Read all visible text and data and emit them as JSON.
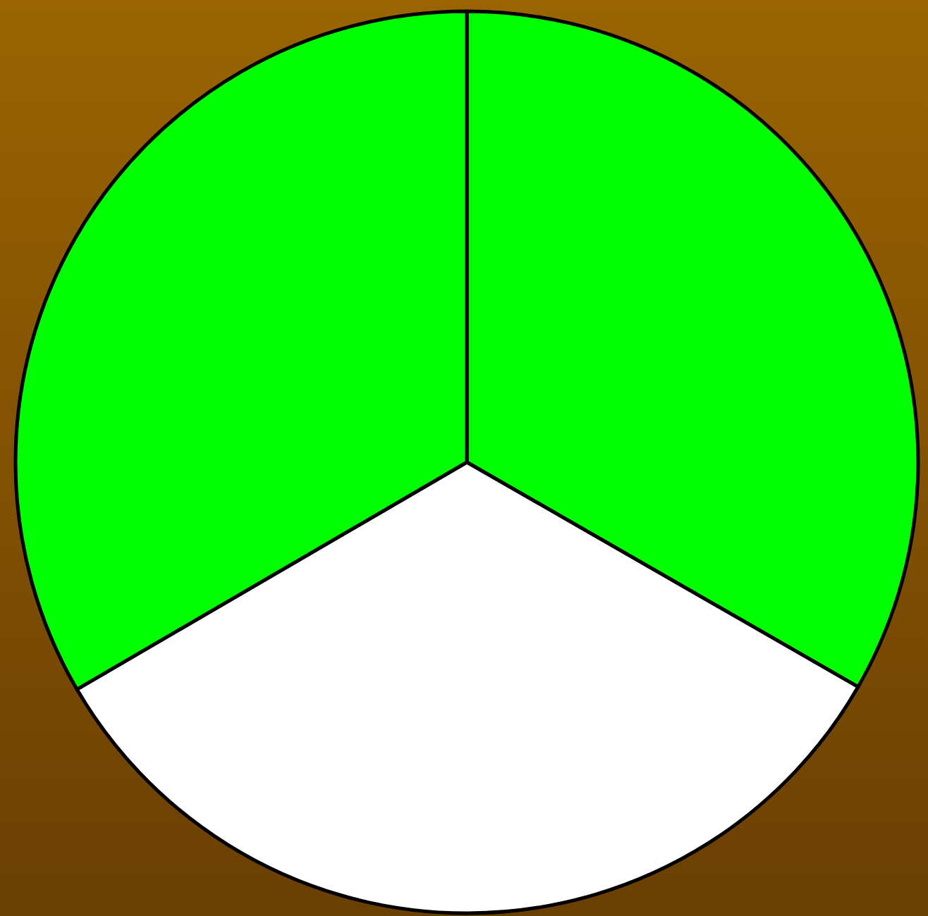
{
  "chart_data": {
    "type": "pie",
    "categories": [
      null,
      null,
      null
    ],
    "values": [
      33.3,
      33.3,
      33.4
    ],
    "colors": [
      "#00ff00",
      "#ffffff",
      "#00ff00"
    ]
  }
}
